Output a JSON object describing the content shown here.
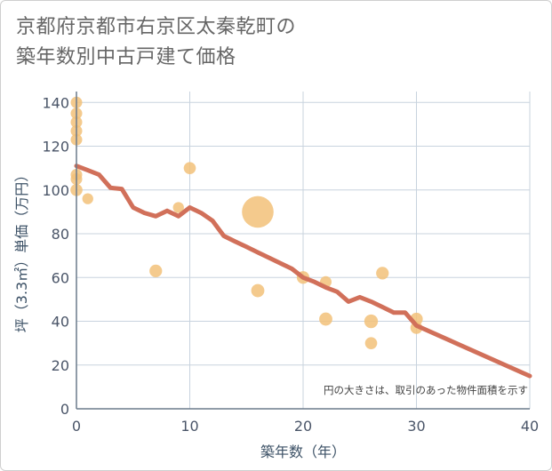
{
  "chart_data": {
    "type": "scatter",
    "title_lines": [
      "京都府京都市右京区太秦乾町の",
      "築年数別中古戸建て価格"
    ],
    "xlabel": "築年数（年）",
    "ylabel": "坪（3.3㎡）単価（万円）",
    "xlim": [
      0,
      40
    ],
    "ylim": [
      0,
      145
    ],
    "xticks": [
      0,
      10,
      20,
      30,
      40
    ],
    "yticks": [
      0,
      20,
      40,
      60,
      80,
      100,
      120,
      140
    ],
    "grid": true,
    "note": "円の大きさは、取引のあった物件面積を示す",
    "colors": {
      "bubble": "#f2c179",
      "trend": "#d1705a",
      "grid": "#c8d3de",
      "axis": "#6b7b8c"
    },
    "bubbles": [
      {
        "x": 0,
        "y": 140,
        "size": 1
      },
      {
        "x": 0,
        "y": 135,
        "size": 1
      },
      {
        "x": 0,
        "y": 131,
        "size": 1
      },
      {
        "x": 0,
        "y": 127,
        "size": 1
      },
      {
        "x": 0,
        "y": 123,
        "size": 1
      },
      {
        "x": 0,
        "y": 107,
        "size": 1
      },
      {
        "x": 0,
        "y": 105,
        "size": 1
      },
      {
        "x": 0,
        "y": 100,
        "size": 1.1
      },
      {
        "x": 1,
        "y": 96,
        "size": 0.9
      },
      {
        "x": 7,
        "y": 63,
        "size": 1.2
      },
      {
        "x": 9,
        "y": 92,
        "size": 0.9
      },
      {
        "x": 10,
        "y": 110,
        "size": 1.1
      },
      {
        "x": 16,
        "y": 90,
        "size": 7.5
      },
      {
        "x": 16,
        "y": 54,
        "size": 1.3
      },
      {
        "x": 20,
        "y": 60,
        "size": 1.2
      },
      {
        "x": 22,
        "y": 58,
        "size": 1
      },
      {
        "x": 22,
        "y": 41,
        "size": 1.3
      },
      {
        "x": 26,
        "y": 40,
        "size": 1.4
      },
      {
        "x": 26,
        "y": 30,
        "size": 1.1
      },
      {
        "x": 27,
        "y": 62,
        "size": 1.2
      },
      {
        "x": 30,
        "y": 41,
        "size": 1.2
      },
      {
        "x": 30,
        "y": 37,
        "size": 1.1
      }
    ],
    "trend": {
      "x": [
        0,
        1,
        2,
        3,
        4,
        5,
        6,
        7,
        8,
        9,
        10,
        11,
        12,
        13,
        14,
        15,
        16,
        17,
        18,
        19,
        20,
        21,
        22,
        23,
        24,
        25,
        26,
        27,
        28,
        29,
        30,
        40
      ],
      "y": [
        111,
        109,
        107,
        101,
        100.5,
        92,
        89.5,
        88,
        90.5,
        88,
        92,
        89.5,
        86,
        79,
        76.5,
        74,
        71.5,
        69,
        66.5,
        64,
        60,
        58,
        55.5,
        53.5,
        49,
        51,
        49,
        46.5,
        44,
        44,
        38,
        15
      ]
    }
  }
}
